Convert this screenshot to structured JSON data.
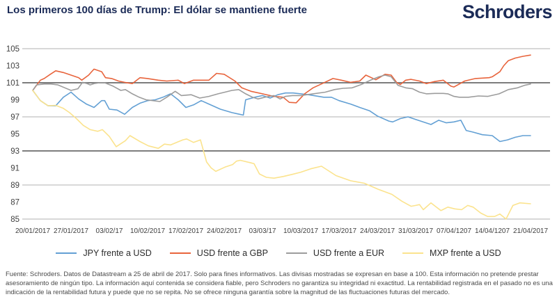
{
  "header": {
    "title": "Los primeros 100 días de Trump: El dólar se mantiene fuerte",
    "logo_text": "Schroders"
  },
  "colors": {
    "navy": "#1b2b57",
    "grid_light": "#b0b0b0",
    "grid_dark": "#7d7d7d",
    "axis_text": "#3f3f3f"
  },
  "footer": {
    "text": "Fuente: Schroders. Datos de Datastream a 25 de abril de 2017. Solo para fines informativos. Las divisas mostradas se expresan en base a 100. Esta información no pretende prestar asesoramiento de ningún tipo. La información aquí contenida se considera fiable, pero Schroders no garantiza su integridad ni exactitud. La rentabilidad registrada en el pasado no es una indicación de la rentabilidad futura y puede que no se repita. No se ofrece ninguna garantía sobre la magnitud de las fluctuaciones futuras del mercado."
  },
  "chart_data": {
    "type": "line",
    "title": "Los primeros 100 días de Trump: El dólar se mantiene fuerte",
    "xlabel": "",
    "ylabel": "",
    "ylim": [
      85,
      105
    ],
    "base_note": "divisas expresadas en base a 100",
    "grid": "horizontal only",
    "legend_position": "bottom center",
    "x_labels": [
      "20/01/2017",
      "27/01/2017",
      "03/02/17",
      "10/02/2017",
      "17/02/2017",
      "24/02/2017",
      "03/03/17",
      "10/03/2017",
      "17/03/2017",
      "24/03/2017",
      "31/03/2017",
      "07/04/1207",
      "14/04/1207",
      "21/04/2017"
    ],
    "y_ticks": [
      105,
      103,
      101,
      99,
      97,
      95,
      93,
      91,
      89,
      87,
      85
    ],
    "gridline_values": [
      105,
      101,
      97,
      93,
      89,
      85
    ],
    "dark_gridline_values": [
      101,
      93
    ],
    "series": [
      {
        "name": "JPY frente a USD",
        "color": "#63a0d4",
        "points": [
          [
            0,
            100.1
          ],
          [
            1,
            98.9
          ],
          [
            2,
            98.3
          ],
          [
            3,
            98.3
          ],
          [
            4,
            99.3
          ],
          [
            5,
            99.9
          ],
          [
            6,
            99.1
          ],
          [
            7,
            98.5
          ],
          [
            8,
            98.1
          ],
          [
            9,
            98.9
          ],
          [
            9.4,
            98.9
          ],
          [
            10,
            97.9
          ],
          [
            11,
            97.8
          ],
          [
            12,
            97.3
          ],
          [
            13,
            98.1
          ],
          [
            14,
            98.6
          ],
          [
            15,
            98.9
          ],
          [
            16,
            99.0
          ],
          [
            17,
            99.3
          ],
          [
            18,
            99.7
          ],
          [
            19,
            99.0
          ],
          [
            20,
            98.1
          ],
          [
            21,
            98.4
          ],
          [
            22,
            98.9
          ],
          [
            23,
            98.5
          ],
          [
            24.5,
            97.9
          ],
          [
            26,
            97.5
          ],
          [
            27,
            97.3
          ],
          [
            27.5,
            97.2
          ],
          [
            27.8,
            99.0
          ],
          [
            29,
            99.3
          ],
          [
            30,
            99.5
          ],
          [
            31,
            99.2
          ],
          [
            32,
            99.6
          ],
          [
            33,
            99.8
          ],
          [
            34,
            99.8
          ],
          [
            35,
            99.7
          ],
          [
            36,
            99.6
          ],
          [
            38,
            99.3
          ],
          [
            39,
            99.3
          ],
          [
            40,
            98.9
          ],
          [
            41.5,
            98.5
          ],
          [
            42.7,
            98.1
          ],
          [
            44,
            97.7
          ],
          [
            45,
            97.1
          ],
          [
            46.5,
            96.5
          ],
          [
            47,
            96.4
          ],
          [
            48,
            96.8
          ],
          [
            49,
            97.0
          ],
          [
            50,
            96.7
          ],
          [
            52,
            96.1
          ],
          [
            53,
            96.6
          ],
          [
            54,
            96.3
          ],
          [
            55,
            96.4
          ],
          [
            55.9,
            96.6
          ],
          [
            56.6,
            95.4
          ],
          [
            57.5,
            95.2
          ],
          [
            58.7,
            94.9
          ],
          [
            60,
            94.8
          ],
          [
            61,
            94.1
          ],
          [
            62,
            94.3
          ],
          [
            63,
            94.6
          ],
          [
            64,
            94.8
          ],
          [
            65,
            94.8
          ]
        ]
      },
      {
        "name": "USD frente a GBP",
        "color": "#e8643c",
        "points": [
          [
            0,
            100.1
          ],
          [
            1,
            101.3
          ],
          [
            1.5,
            101.5
          ],
          [
            2.3,
            102.0
          ],
          [
            3,
            102.4
          ],
          [
            4,
            102.2
          ],
          [
            5,
            101.9
          ],
          [
            6,
            101.6
          ],
          [
            6.4,
            101.3
          ],
          [
            7.3,
            101.9
          ],
          [
            8,
            102.6
          ],
          [
            9,
            102.3
          ],
          [
            9.5,
            101.6
          ],
          [
            10.3,
            101.5
          ],
          [
            11.2,
            101.2
          ],
          [
            12,
            101.05
          ],
          [
            13,
            100.9
          ],
          [
            14,
            101.6
          ],
          [
            15,
            101.5
          ],
          [
            16.4,
            101.3
          ],
          [
            17.5,
            101.2
          ],
          [
            19,
            101.3
          ],
          [
            19.8,
            100.9
          ],
          [
            21,
            101.3
          ],
          [
            23,
            101.3
          ],
          [
            24,
            102.1
          ],
          [
            25,
            102.0
          ],
          [
            26.4,
            101.2
          ],
          [
            27.3,
            100.4
          ],
          [
            28.5,
            100.0
          ],
          [
            30,
            99.7
          ],
          [
            31.5,
            99.4
          ],
          [
            32.7,
            99.3
          ],
          [
            33.5,
            98.7
          ],
          [
            34.4,
            98.65
          ],
          [
            35.5,
            99.7
          ],
          [
            36.6,
            100.4
          ],
          [
            37.8,
            100.9
          ],
          [
            39.2,
            101.5
          ],
          [
            40.3,
            101.3
          ],
          [
            41.5,
            101.05
          ],
          [
            42.7,
            101.2
          ],
          [
            43.5,
            101.9
          ],
          [
            44.8,
            101.35
          ],
          [
            46,
            102.0
          ],
          [
            46.8,
            101.9
          ],
          [
            47.5,
            101.05
          ],
          [
            48,
            100.8
          ],
          [
            48.7,
            101.3
          ],
          [
            49.4,
            101.4
          ],
          [
            50.5,
            101.2
          ],
          [
            51.4,
            100.9
          ],
          [
            52.5,
            101.15
          ],
          [
            53.6,
            101.3
          ],
          [
            54.6,
            100.6
          ],
          [
            55,
            100.5
          ],
          [
            56.4,
            101.2
          ],
          [
            57.8,
            101.5
          ],
          [
            59.6,
            101.6
          ],
          [
            60,
            101.7
          ],
          [
            61,
            102.3
          ],
          [
            61.5,
            103.0
          ],
          [
            62.1,
            103.6
          ],
          [
            63,
            103.9
          ],
          [
            64,
            104.1
          ],
          [
            65,
            104.25
          ]
        ]
      },
      {
        "name": "USD frente a EUR",
        "color": "#9c9c9c",
        "points": [
          [
            0,
            100.1
          ],
          [
            0.5,
            100.75
          ],
          [
            1.5,
            100.85
          ],
          [
            2.4,
            100.85
          ],
          [
            3.3,
            100.75
          ],
          [
            4.2,
            100.4
          ],
          [
            5,
            100.1
          ],
          [
            5.9,
            100.3
          ],
          [
            6.5,
            101.05
          ],
          [
            7.1,
            100.9
          ],
          [
            7.5,
            100.75
          ],
          [
            8,
            100.9
          ],
          [
            8.7,
            101.0
          ],
          [
            9.4,
            101.0
          ],
          [
            10.5,
            100.6
          ],
          [
            11.5,
            100.1
          ],
          [
            12.1,
            100.2
          ],
          [
            13,
            99.7
          ],
          [
            13.9,
            99.3
          ],
          [
            14.8,
            99.0
          ],
          [
            15.7,
            98.9
          ],
          [
            16.6,
            98.8
          ],
          [
            17.5,
            99.3
          ],
          [
            18.6,
            100.0
          ],
          [
            19.4,
            99.5
          ],
          [
            20.7,
            99.6
          ],
          [
            21.8,
            99.2
          ],
          [
            23,
            99.4
          ],
          [
            24.2,
            99.7
          ],
          [
            25.1,
            99.9
          ],
          [
            26,
            100.1
          ],
          [
            26.9,
            100.2
          ],
          [
            27.8,
            99.7
          ],
          [
            28.7,
            99.3
          ],
          [
            29.4,
            99.1
          ],
          [
            30.3,
            99.3
          ],
          [
            31.5,
            99.5
          ],
          [
            32.3,
            99.1
          ],
          [
            33,
            99.4
          ],
          [
            33.9,
            99.5
          ],
          [
            35,
            99.5
          ],
          [
            36.6,
            99.7
          ],
          [
            38.2,
            99.9
          ],
          [
            39.4,
            100.2
          ],
          [
            40.5,
            100.35
          ],
          [
            41.7,
            100.4
          ],
          [
            42.9,
            100.8
          ],
          [
            44.1,
            101.3
          ],
          [
            45.2,
            101.7
          ],
          [
            46,
            101.9
          ],
          [
            46.8,
            101.7
          ],
          [
            47.7,
            100.7
          ],
          [
            48.7,
            100.4
          ],
          [
            49.6,
            100.3
          ],
          [
            50.5,
            99.9
          ],
          [
            51.4,
            99.7
          ],
          [
            52.5,
            99.75
          ],
          [
            53.6,
            99.75
          ],
          [
            54.2,
            99.7
          ],
          [
            55,
            99.4
          ],
          [
            55.7,
            99.3
          ],
          [
            56.9,
            99.3
          ],
          [
            58.2,
            99.45
          ],
          [
            59.4,
            99.4
          ],
          [
            60.9,
            99.7
          ],
          [
            62.1,
            100.2
          ],
          [
            63.3,
            100.4
          ],
          [
            64.2,
            100.7
          ],
          [
            65,
            100.85
          ]
        ]
      },
      {
        "name": "MXP frente a USD",
        "color": "#fbe38d",
        "points": [
          [
            0,
            100.1
          ],
          [
            1,
            98.9
          ],
          [
            2,
            98.3
          ],
          [
            3,
            98.35
          ],
          [
            4,
            98.0
          ],
          [
            4.8,
            97.5
          ],
          [
            5.7,
            96.8
          ],
          [
            6.6,
            96.0
          ],
          [
            7.5,
            95.5
          ],
          [
            8.5,
            95.3
          ],
          [
            9.1,
            95.5
          ],
          [
            10,
            94.7
          ],
          [
            10.9,
            93.5
          ],
          [
            12.1,
            94.2
          ],
          [
            12.7,
            94.8
          ],
          [
            14,
            94.1
          ],
          [
            15.1,
            93.6
          ],
          [
            16.4,
            93.3
          ],
          [
            17.2,
            93.8
          ],
          [
            18,
            93.7
          ],
          [
            19.6,
            94.3
          ],
          [
            20.1,
            94.4
          ],
          [
            21,
            94.0
          ],
          [
            21.9,
            94.3
          ],
          [
            22.7,
            91.7
          ],
          [
            23.3,
            91.0
          ],
          [
            23.9,
            90.6
          ],
          [
            25.1,
            91.1
          ],
          [
            26.1,
            91.4
          ],
          [
            26.6,
            91.8
          ],
          [
            27.1,
            91.9
          ],
          [
            28.5,
            91.6
          ],
          [
            28.9,
            91.5
          ],
          [
            29.6,
            90.3
          ],
          [
            30.5,
            89.9
          ],
          [
            31.5,
            89.8
          ],
          [
            32.7,
            90.0
          ],
          [
            33.9,
            90.25
          ],
          [
            35,
            90.5
          ],
          [
            36.3,
            90.9
          ],
          [
            37.7,
            91.2
          ],
          [
            39.6,
            90.1
          ],
          [
            41.5,
            89.5
          ],
          [
            43.3,
            89.2
          ],
          [
            45.1,
            88.5
          ],
          [
            46.9,
            87.9
          ],
          [
            48.2,
            87.1
          ],
          [
            49,
            86.7
          ],
          [
            49.4,
            86.5
          ],
          [
            50,
            86.6
          ],
          [
            50.5,
            86.7
          ],
          [
            51,
            86.1
          ],
          [
            52,
            86.9
          ],
          [
            52.7,
            86.4
          ],
          [
            53.3,
            86.0
          ],
          [
            54.2,
            86.4
          ],
          [
            55.1,
            86.2
          ],
          [
            56,
            86.1
          ],
          [
            56.8,
            86.6
          ],
          [
            57.5,
            86.4
          ],
          [
            58.5,
            85.7
          ],
          [
            59.4,
            85.3
          ],
          [
            60.3,
            85.3
          ],
          [
            61,
            85.6
          ],
          [
            61.8,
            85.0
          ],
          [
            62.7,
            86.6
          ],
          [
            63.6,
            86.9
          ],
          [
            65,
            86.8
          ]
        ]
      }
    ]
  }
}
